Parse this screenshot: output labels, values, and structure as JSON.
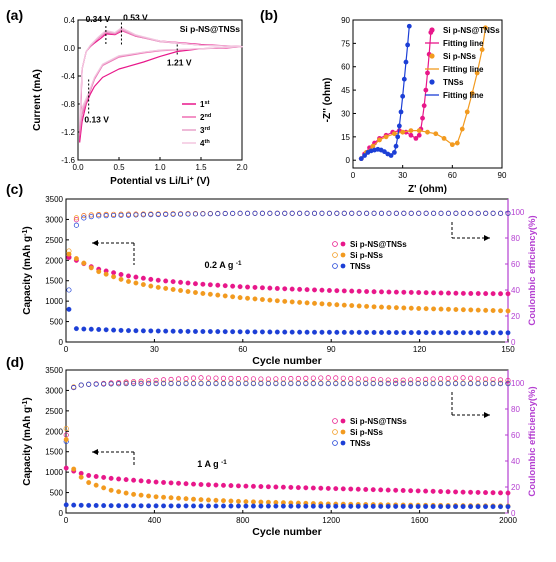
{
  "colors": {
    "magenta": "#e8178a",
    "orange": "#f29a1f",
    "blue": "#1c3fd6",
    "purple": "#b43fd1",
    "black": "#000000"
  },
  "chart_data": [
    {
      "panel_label": "(a)",
      "type": "line",
      "title": "Si p-NS@TNSs",
      "xlabel": "Potential vs Li/Li+ (V)",
      "ylabel": "Current (mA)",
      "xlim": [
        0.0,
        2.0
      ],
      "ylim": [
        -1.6,
        0.4
      ],
      "xticks": [
        "0.0",
        "0.5",
        "1.0",
        "1.5",
        "2.0"
      ],
      "yticks": [
        "-1.6",
        "-1.2",
        "-0.8",
        "-0.4",
        "0.0",
        "0.4"
      ],
      "annotations": [
        "0.34 V",
        "0.53 V",
        "1.21 V",
        "0.13 V"
      ],
      "legend": [
        "1st",
        "2nd",
        "3rd",
        "4th"
      ],
      "series": [
        {
          "name": "1st",
          "color": "#e8178a",
          "x": [
            0.02,
            0.05,
            0.1,
            0.15,
            0.2,
            0.3,
            0.5,
            0.8,
            1.0,
            1.21,
            1.5,
            1.8,
            2.0,
            1.8,
            1.5,
            1.0,
            0.7,
            0.55,
            0.53,
            0.45,
            0.36,
            0.34,
            0.28,
            0.2,
            0.15,
            0.1,
            0.05,
            0.02
          ],
          "y": [
            -1.35,
            -1.05,
            -0.8,
            -0.66,
            -0.55,
            -0.42,
            -0.3,
            -0.2,
            -0.12,
            -0.05,
            -0.01,
            0.0,
            0.02,
            0.03,
            0.05,
            0.1,
            0.17,
            0.24,
            0.24,
            0.19,
            0.2,
            0.2,
            0.14,
            0.07,
            0.02,
            -0.05,
            -0.3,
            -1.35
          ]
        },
        {
          "name": "2nd",
          "color": "#ef6fb3",
          "x": [
            0.02,
            0.05,
            0.1,
            0.13,
            0.2,
            0.3,
            0.5,
            0.8,
            1.0,
            1.5,
            2.0,
            1.5,
            1.0,
            0.7,
            0.53,
            0.45,
            0.34,
            0.25,
            0.15,
            0.1,
            0.05,
            0.02
          ],
          "y": [
            -1.25,
            -0.95,
            -0.78,
            -0.68,
            -0.45,
            -0.25,
            -0.13,
            -0.07,
            -0.04,
            -0.01,
            0.02,
            0.04,
            0.09,
            0.17,
            0.25,
            0.2,
            0.22,
            0.14,
            0.03,
            -0.05,
            -0.3,
            -1.25
          ]
        },
        {
          "name": "3rd",
          "color": "#e9a3cb",
          "x": [
            0.02,
            0.05,
            0.1,
            0.13,
            0.2,
            0.3,
            0.5,
            0.8,
            1.0,
            1.5,
            2.0,
            1.5,
            1.0,
            0.7,
            0.53,
            0.45,
            0.34,
            0.25,
            0.15,
            0.1,
            0.05,
            0.02
          ],
          "y": [
            -1.15,
            -0.9,
            -0.75,
            -0.66,
            -0.43,
            -0.24,
            -0.12,
            -0.06,
            -0.03,
            -0.01,
            0.02,
            0.04,
            0.09,
            0.18,
            0.27,
            0.21,
            0.23,
            0.15,
            0.03,
            -0.05,
            -0.3,
            -1.15
          ]
        },
        {
          "name": "4th",
          "color": "#f2c6df",
          "x": [
            0.02,
            0.05,
            0.1,
            0.13,
            0.2,
            0.3,
            0.5,
            0.8,
            1.0,
            1.5,
            2.0,
            1.5,
            1.0,
            0.7,
            0.53,
            0.45,
            0.34,
            0.25,
            0.15,
            0.1,
            0.05,
            0.02
          ],
          "y": [
            -1.05,
            -0.85,
            -0.72,
            -0.64,
            -0.42,
            -0.23,
            -0.11,
            -0.06,
            -0.03,
            -0.01,
            0.02,
            0.04,
            0.1,
            0.19,
            0.29,
            0.22,
            0.25,
            0.16,
            0.04,
            -0.05,
            -0.3,
            -1.05
          ]
        }
      ]
    },
    {
      "panel_label": "(b)",
      "type": "scatter",
      "xlabel": "Z' (ohm)",
      "ylabel": "-Z'' (ohm)",
      "xlim": [
        0,
        90
      ],
      "ylim": [
        -5,
        90
      ],
      "xticks": [
        "0",
        "30",
        "60",
        "90"
      ],
      "yticks": [
        "0",
        "15",
        "30",
        "45",
        "60",
        "75",
        "90"
      ],
      "legend": [
        "Si p-NS@TNSs",
        "Fitting line",
        "Si p-NSs",
        "Fitting line",
        "TNSs",
        "Fitting line"
      ],
      "series": [
        {
          "name": "Si p-NS@TNSs",
          "color": "#e8178a",
          "x": [
            5,
            7,
            10,
            13,
            16,
            20,
            24,
            28,
            32,
            35,
            38,
            40,
            41,
            42,
            43,
            44,
            45,
            46,
            47
          ],
          "y": [
            1,
            4,
            8,
            11,
            14,
            16,
            18,
            19,
            18,
            16,
            14,
            16,
            20,
            27,
            35,
            45,
            56,
            68,
            82
          ]
        },
        {
          "name": "Si p-NSs",
          "color": "#f29a1f",
          "x": [
            5,
            8,
            12,
            16,
            20,
            25,
            30,
            35,
            40,
            45,
            50,
            55,
            60,
            63,
            66,
            69,
            72,
            75,
            78,
            80
          ],
          "y": [
            1,
            5,
            9,
            13,
            15,
            17,
            18,
            19,
            19,
            18,
            17,
            14,
            10,
            11,
            20,
            31,
            43,
            56,
            71,
            85
          ]
        },
        {
          "name": "TNSs",
          "color": "#1c3fd6",
          "x": [
            5,
            7,
            9,
            11,
            13,
            15,
            17,
            19,
            21,
            23,
            25,
            26,
            27,
            28,
            29,
            30,
            31,
            32,
            33,
            34
          ],
          "y": [
            1,
            3,
            5,
            6,
            6.5,
            7,
            6.5,
            5.5,
            4,
            3,
            5,
            9,
            15,
            22,
            31,
            41,
            52,
            63,
            74,
            86
          ]
        }
      ]
    },
    {
      "panel_label": "(c)",
      "type": "scatter",
      "xlabel": "Cycle number",
      "ylabel": "Capacity (mAh g-1)",
      "y2label": "Coulombic efficiency(%)",
      "xlim": [
        0,
        150
      ],
      "ylim": [
        0,
        3500
      ],
      "y2lim": [
        0,
        110
      ],
      "xticks": [
        "0",
        "30",
        "60",
        "90",
        "120",
        "150"
      ],
      "yticks": [
        "0",
        "500",
        "1000",
        "1500",
        "2000",
        "2500",
        "3000",
        "3500"
      ],
      "y2ticks": [
        "0",
        "20",
        "40",
        "60",
        "80",
        "100"
      ],
      "annotation": "0.2 A g-1",
      "legend": [
        "Si p-NS@TNSs",
        "Si p-NSs",
        "TNSs"
      ],
      "capacity_series": [
        {
          "name": "Si p-NS@TNSs",
          "color": "#e8178a",
          "x": [
            1,
            5,
            10,
            20,
            30,
            45,
            60,
            75,
            90,
            105,
            120,
            135,
            150
          ],
          "y": [
            2080,
            1950,
            1800,
            1630,
            1520,
            1420,
            1350,
            1300,
            1260,
            1230,
            1210,
            1190,
            1180
          ]
        },
        {
          "name": "Si p-NSs",
          "color": "#f29a1f",
          "x": [
            1,
            5,
            10,
            20,
            30,
            45,
            60,
            75,
            90,
            105,
            120,
            135,
            150
          ],
          "y": [
            2150,
            1980,
            1750,
            1500,
            1350,
            1200,
            1080,
            990,
            920,
            860,
            820,
            790,
            760
          ]
        },
        {
          "name": "TNSs",
          "color": "#1c3fd6",
          "x": [
            1,
            3,
            5,
            10,
            20,
            40,
            60,
            80,
            100,
            120,
            140,
            150
          ],
          "y": [
            800,
            330,
            320,
            310,
            280,
            260,
            250,
            240,
            235,
            230,
            228,
            225
          ]
        }
      ],
      "efficiency_series": [
        {
          "name": "Si p-NS@TNSs",
          "color": "#e8178a",
          "x": [
            1,
            2,
            3,
            5,
            10,
            30,
            60,
            90,
            120,
            150
          ],
          "y": [
            65,
            88,
            93,
            97,
            98,
            98.5,
            99,
            99,
            99,
            99
          ]
        },
        {
          "name": "Si p-NSs",
          "color": "#f29a1f",
          "x": [
            1,
            2,
            3,
            5,
            10,
            30,
            60,
            90,
            120,
            150
          ],
          "y": [
            70,
            90,
            95,
            97,
            98,
            98.5,
            99,
            99,
            99,
            99
          ]
        },
        {
          "name": "TNSs",
          "color": "#1c3fd6",
          "x": [
            1,
            2,
            3,
            5,
            10,
            30,
            60,
            90,
            120,
            150
          ],
          "y": [
            40,
            75,
            88,
            95,
            97,
            98,
            99,
            99,
            99,
            99
          ]
        }
      ]
    },
    {
      "panel_label": "(d)",
      "type": "scatter",
      "xlabel": "Cycle number",
      "ylabel": "Capacity (mAh g-1)",
      "y2label": "Coulombic efficiency(%)",
      "xlim": [
        0,
        2000
      ],
      "ylim": [
        0,
        3500
      ],
      "y2lim": [
        0,
        110
      ],
      "xticks": [
        "0",
        "400",
        "800",
        "1200",
        "1600",
        "2000"
      ],
      "yticks": [
        "0",
        "500",
        "1000",
        "1500",
        "2000",
        "2500",
        "3000",
        "3500"
      ],
      "y2ticks": [
        "0",
        "20",
        "40",
        "60",
        "80",
        "100"
      ],
      "annotation": "1 A g-1",
      "legend": [
        "Si p-NS@TNSs",
        "Si p-NSs",
        "TNSs"
      ],
      "capacity_series": [
        {
          "name": "Si p-NS@TNSs",
          "color": "#e8178a",
          "x": [
            1,
            20,
            50,
            100,
            200,
            400,
            600,
            800,
            1000,
            1200,
            1400,
            1600,
            1800,
            2000
          ],
          "y": [
            1100,
            1050,
            1000,
            920,
            850,
            760,
            700,
            660,
            630,
            600,
            570,
            540,
            510,
            490
          ]
        },
        {
          "name": "Si p-NSs",
          "color": "#f29a1f",
          "x": [
            1,
            10,
            20,
            50,
            100,
            200,
            300,
            400,
            600,
            800,
            1000,
            1200,
            1600,
            2000
          ],
          "y": [
            1800,
            1500,
            1200,
            950,
            750,
            560,
            460,
            400,
            330,
            280,
            250,
            220,
            190,
            170
          ]
        },
        {
          "name": "TNSs",
          "color": "#1c3fd6",
          "x": [
            1,
            50,
            200,
            400,
            800,
            1200,
            1600,
            2000
          ],
          "y": [
            200,
            190,
            180,
            175,
            170,
            165,
            160,
            155
          ]
        }
      ],
      "efficiency_series": [
        {
          "name": "Si p-NS@TNSs",
          "color": "#e8178a",
          "x": [
            1,
            20,
            50,
            100,
            300,
            600,
            900,
            1200,
            1500,
            1800,
            2000
          ],
          "y": [
            60,
            95,
            98,
            99,
            101,
            104,
            103,
            104,
            102,
            104,
            102
          ]
        },
        {
          "name": "Si p-NSs",
          "color": "#f29a1f",
          "x": [
            1,
            20,
            50,
            100,
            300,
            600,
            900,
            1200,
            1500,
            1800,
            2000
          ],
          "y": [
            65,
            96,
            98,
            99,
            100,
            100,
            100,
            100,
            100,
            100,
            100
          ]
        },
        {
          "name": "TNSs",
          "color": "#1c3fd6",
          "x": [
            1,
            20,
            50,
            100,
            300,
            600,
            900,
            1200,
            1500,
            1800,
            2000
          ],
          "y": [
            55,
            95,
            98,
            99,
            99.5,
            99.5,
            99.5,
            99.5,
            99.5,
            99.5,
            99.5
          ]
        }
      ]
    }
  ]
}
